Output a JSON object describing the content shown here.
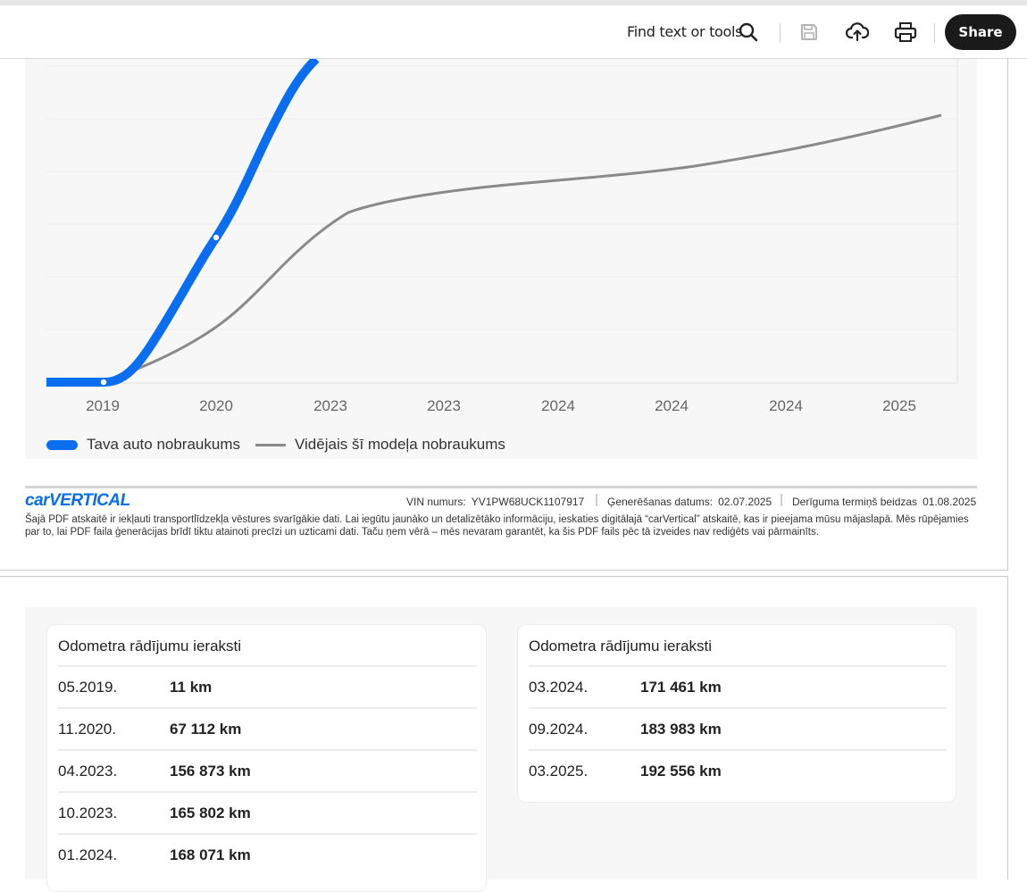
{
  "toolbar": {
    "find_label": "Find text or tools",
    "share_label": "Share",
    "icons": [
      "search-icon",
      "save-icon",
      "upload-cloud-icon",
      "print-icon"
    ]
  },
  "chart_data": {
    "type": "line",
    "x_ticks": [
      "2019",
      "2020",
      "2023",
      "2023",
      "2024",
      "2024",
      "2024",
      "2025"
    ],
    "series": [
      {
        "name": "Tava auto nobraukums",
        "color": "#0a6ef0"
      },
      {
        "name": "Vidējais šī modeļa nobraukums",
        "color": "#8a8a8a"
      }
    ],
    "grid": true,
    "legend": "bottom-left"
  },
  "legend": {
    "own": "Tava auto nobraukums",
    "avg": "Vidējais šī modeļa nobraukums"
  },
  "footer": {
    "brand": "carVERTICAL",
    "vin_label": "VIN numurs:",
    "vin_value": "YV1PW68UCK1107917",
    "gen_label": "Ģenerēšanas datums:",
    "gen_value": "02.07.2025",
    "valid_label": "Derīguma termiņš beidzas",
    "valid_value": "01.08.2025",
    "disclaimer": "Šajā PDF atskaitē ir iekļauti transportlīdzekļa vēstures svarīgākie dati. Lai iegūtu jaunāko un detalizētāko informāciju, ieskaties digitālajā “carVertical” atskaitē, kas ir pieejama mūsu mājaslapā. Mēs rūpējamies par to, lai PDF faila ģenerācijas brīdī tiktu atainoti precīzi un uzticami dati. Taču ņem vērā – mēs nevaram garantēt, ka šis PDF fails pēc tā izveides nav rediģēts vai pārmainīts."
  },
  "records": {
    "left": {
      "title": "Odometra rādījumu ieraksti",
      "rows": [
        {
          "date": "05.2019.",
          "km": "11 km"
        },
        {
          "date": "11.2020.",
          "km": "67 112 km"
        },
        {
          "date": "04.2023.",
          "km": "156 873 km"
        },
        {
          "date": "10.2023.",
          "km": "165 802 km"
        },
        {
          "date": "01.2024.",
          "km": "168 071 km"
        }
      ]
    },
    "right": {
      "title": "Odometra rādījumu ieraksti",
      "rows": [
        {
          "date": "03.2024.",
          "km": "171 461 km"
        },
        {
          "date": "09.2024.",
          "km": "183 983 km"
        },
        {
          "date": "03.2025.",
          "km": "192 556 km"
        }
      ]
    }
  }
}
